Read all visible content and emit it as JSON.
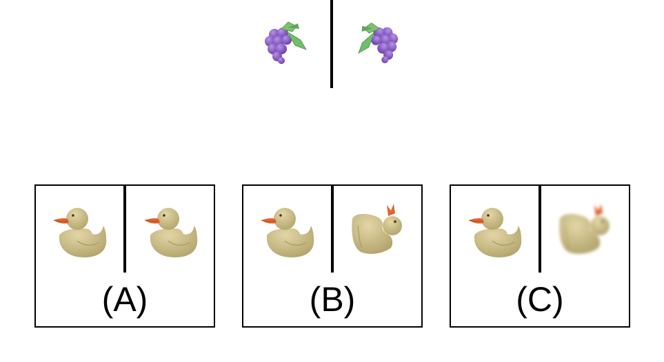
{
  "example": {
    "left_item": "grape-cluster",
    "right_item": "grape-cluster-rotated"
  },
  "options": [
    {
      "label": "(A)",
      "left": "rubber-duck",
      "right": "rubber-duck"
    },
    {
      "label": "(B)",
      "left": "rubber-duck",
      "right": "rubber-duck-rotated"
    },
    {
      "label": "(C)",
      "left": "rubber-duck",
      "right": "rubber-duck-rotated-blurred"
    }
  ],
  "colors": {
    "grape": "#8a5cc4",
    "leaf": "#6fbf6a",
    "duck": "#cfc08a",
    "beak": "#e0652f"
  }
}
